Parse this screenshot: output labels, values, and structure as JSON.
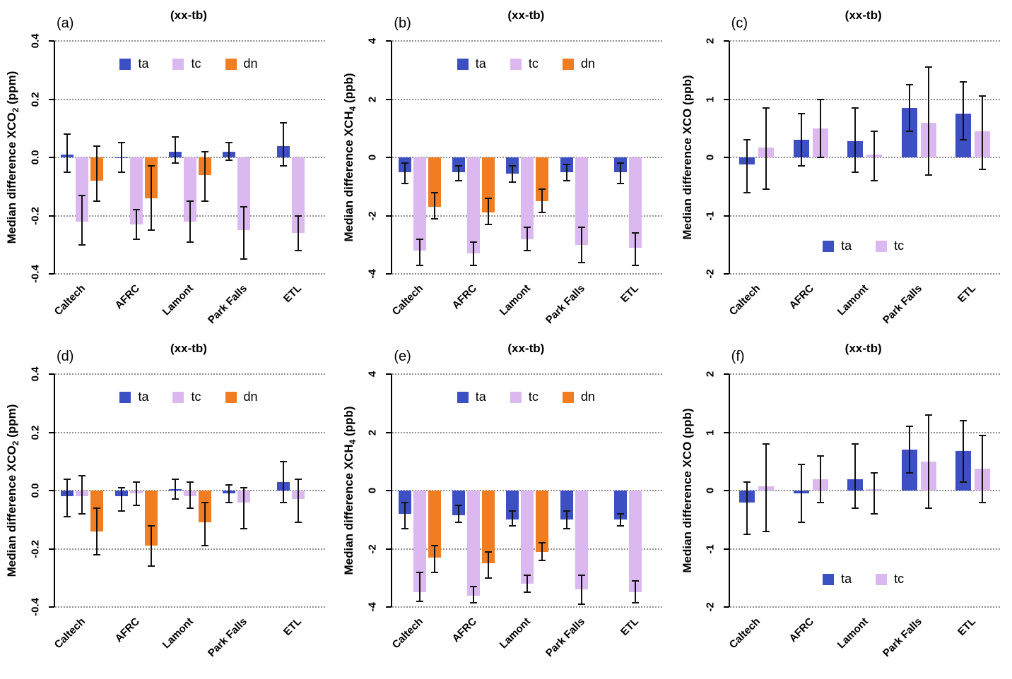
{
  "colors": {
    "ta": "#3d50c3",
    "tc": "#dcb8f0",
    "dn": "#f07d22",
    "grid": "#8f8f8f",
    "axis": "#000000",
    "error": "#121212"
  },
  "chart_data": [
    {
      "id": "a",
      "type": "bar",
      "letter": "(a)",
      "title": "(xx-tb)",
      "ylabel": {
        "prefix": "Median difference XCO",
        "sub": "2",
        "suffix": " (ppm)"
      },
      "ylim": [
        -0.4,
        0.4
      ],
      "yticks": [
        -0.4,
        -0.2,
        0.0,
        0.2,
        0.4
      ],
      "ytick_labels": [
        "-0.4",
        "-0.2",
        "0.0",
        "0.2",
        "0.4"
      ],
      "categories": [
        "Caltech",
        "AFRC",
        "Lamont",
        "Park Falls",
        "ETL"
      ],
      "grid": true,
      "legend_position": "top",
      "series": [
        {
          "name": "ta",
          "color_key": "ta",
          "values": [
            0.01,
            0.0,
            0.02,
            0.02,
            0.04
          ],
          "err_lo": [
            -0.05,
            -0.05,
            -0.02,
            -0.01,
            -0.03
          ],
          "err_hi": [
            0.08,
            0.05,
            0.07,
            0.05,
            0.12
          ]
        },
        {
          "name": "tc",
          "color_key": "tc",
          "values": [
            -0.22,
            -0.23,
            -0.22,
            -0.25,
            -0.26
          ],
          "err_lo": [
            -0.3,
            -0.28,
            -0.29,
            -0.35,
            -0.32
          ],
          "err_hi": [
            -0.13,
            -0.18,
            -0.15,
            -0.17,
            -0.2
          ]
        },
        {
          "name": "dn",
          "color_key": "dn",
          "values": [
            -0.08,
            -0.14,
            -0.06,
            null,
            null
          ],
          "err_lo": [
            -0.15,
            -0.25,
            -0.15,
            null,
            null
          ],
          "err_hi": [
            0.04,
            -0.03,
            0.02,
            null,
            null
          ]
        }
      ]
    },
    {
      "id": "b",
      "type": "bar",
      "letter": "(b)",
      "title": "(xx-tb)",
      "ylabel": {
        "prefix": "Median difference XCH",
        "sub": "4",
        "suffix": " (ppb)"
      },
      "ylim": [
        -4,
        4
      ],
      "yticks": [
        -4,
        -2,
        0,
        2,
        4
      ],
      "ytick_labels": [
        "-4",
        "-2",
        "0",
        "2",
        "4"
      ],
      "categories": [
        "Caltech",
        "AFRC",
        "Lamont",
        "Park Falls",
        "ETL"
      ],
      "grid": true,
      "legend_position": "top",
      "series": [
        {
          "name": "ta",
          "color_key": "ta",
          "values": [
            -0.5,
            -0.5,
            -0.55,
            -0.5,
            -0.5
          ],
          "err_lo": [
            -0.9,
            -0.8,
            -0.85,
            -0.8,
            -0.9
          ],
          "err_hi": [
            -0.2,
            -0.3,
            -0.3,
            -0.25,
            -0.2
          ]
        },
        {
          "name": "tc",
          "color_key": "tc",
          "values": [
            -3.2,
            -3.3,
            -2.8,
            -3.0,
            -3.1
          ],
          "err_lo": [
            -3.7,
            -3.7,
            -3.2,
            -3.6,
            -3.7
          ],
          "err_hi": [
            -2.8,
            -2.9,
            -2.4,
            -2.4,
            -2.6
          ]
        },
        {
          "name": "dn",
          "color_key": "dn",
          "values": [
            -1.7,
            -1.9,
            -1.5,
            null,
            null
          ],
          "err_lo": [
            -2.1,
            -2.3,
            -1.9,
            null,
            null
          ],
          "err_hi": [
            -1.2,
            -1.4,
            -1.1,
            null,
            null
          ]
        }
      ]
    },
    {
      "id": "c",
      "type": "bar",
      "letter": "(c)",
      "title": "(xx-tb)",
      "ylabel": {
        "prefix": "Median difference XCO",
        "sub": "",
        "suffix": " (ppb)"
      },
      "ylim": [
        -2,
        2
      ],
      "yticks": [
        -2,
        -1,
        0,
        1,
        2
      ],
      "ytick_labels": [
        "-2",
        "-1",
        "0",
        "1",
        "2"
      ],
      "categories": [
        "Caltech",
        "AFRC",
        "Lamont",
        "Park Falls",
        "ETL"
      ],
      "grid": true,
      "legend_position": "bottom",
      "series": [
        {
          "name": "ta",
          "color_key": "ta",
          "values": [
            -0.12,
            0.3,
            0.28,
            0.85,
            0.75
          ],
          "err_lo": [
            -0.6,
            -0.15,
            -0.25,
            0.45,
            0.3
          ],
          "err_hi": [
            0.3,
            0.75,
            0.85,
            1.25,
            1.3
          ]
        },
        {
          "name": "tc",
          "color_key": "tc",
          "values": [
            0.17,
            0.5,
            0.05,
            0.6,
            0.45
          ],
          "err_lo": [
            -0.55,
            0.0,
            -0.4,
            -0.3,
            -0.2
          ],
          "err_hi": [
            0.85,
            1.0,
            0.45,
            1.55,
            1.05
          ]
        }
      ]
    },
    {
      "id": "d",
      "type": "bar",
      "letter": "(d)",
      "title": "(xx-tb)",
      "ylabel": {
        "prefix": "Median difference XCO",
        "sub": "2",
        "suffix": " (ppm)"
      },
      "ylim": [
        -0.4,
        0.4
      ],
      "yticks": [
        -0.4,
        -0.2,
        0.0,
        0.2,
        0.4
      ],
      "ytick_labels": [
        "-0.4",
        "-0.2",
        "0.0",
        "0.2",
        "0.4"
      ],
      "categories": [
        "Caltech",
        "AFRC",
        "Lamont",
        "Park Falls",
        "ETL"
      ],
      "grid": true,
      "legend_position": "top",
      "series": [
        {
          "name": "ta",
          "color_key": "ta",
          "values": [
            -0.02,
            -0.02,
            0.005,
            -0.01,
            0.03
          ],
          "err_lo": [
            -0.09,
            -0.07,
            -0.03,
            -0.04,
            -0.04
          ],
          "err_hi": [
            0.04,
            0.01,
            0.04,
            0.02,
            0.1
          ]
        },
        {
          "name": "tc",
          "color_key": "tc",
          "values": [
            -0.02,
            -0.01,
            -0.02,
            -0.04,
            -0.03
          ],
          "err_lo": [
            -0.08,
            -0.05,
            -0.06,
            -0.13,
            -0.11
          ],
          "err_hi": [
            0.05,
            0.03,
            0.03,
            0.01,
            0.04
          ]
        },
        {
          "name": "dn",
          "color_key": "dn",
          "values": [
            -0.14,
            -0.19,
            -0.11,
            null,
            null
          ],
          "err_lo": [
            -0.22,
            -0.26,
            -0.19,
            null,
            null
          ],
          "err_hi": [
            -0.06,
            -0.12,
            -0.04,
            null,
            null
          ]
        }
      ]
    },
    {
      "id": "e",
      "type": "bar",
      "letter": "(e)",
      "title": "(xx-tb)",
      "ylabel": {
        "prefix": "Median difference XCH",
        "sub": "4",
        "suffix": " (ppb)"
      },
      "ylim": [
        -4,
        4
      ],
      "yticks": [
        -4,
        -2,
        0,
        2,
        4
      ],
      "ytick_labels": [
        "-4",
        "-2",
        "0",
        "2",
        "4"
      ],
      "categories": [
        "Caltech",
        "AFRC",
        "Lamont",
        "Park Falls",
        "ETL"
      ],
      "grid": true,
      "legend_position": "top",
      "series": [
        {
          "name": "ta",
          "color_key": "ta",
          "values": [
            -0.8,
            -0.85,
            -1.0,
            -1.0,
            -1.0
          ],
          "err_lo": [
            -1.3,
            -1.1,
            -1.2,
            -1.3,
            -1.2
          ],
          "err_hi": [
            -0.4,
            -0.5,
            -0.7,
            -0.7,
            -0.8
          ]
        },
        {
          "name": "tc",
          "color_key": "tc",
          "values": [
            -3.5,
            -3.6,
            -3.2,
            -3.4,
            -3.5
          ],
          "err_lo": [
            -3.8,
            -3.85,
            -3.5,
            -3.9,
            -3.85
          ],
          "err_hi": [
            -2.8,
            -3.3,
            -2.9,
            -2.9,
            -3.1
          ]
        },
        {
          "name": "dn",
          "color_key": "dn",
          "values": [
            -2.3,
            -2.5,
            -2.1,
            null,
            null
          ],
          "err_lo": [
            -2.8,
            -3.0,
            -2.4,
            null,
            null
          ],
          "err_hi": [
            -1.9,
            -2.1,
            -1.8,
            null,
            null
          ]
        }
      ]
    },
    {
      "id": "f",
      "type": "bar",
      "letter": "(f)",
      "title": "(xx-tb)",
      "ylabel": {
        "prefix": "Median difference XCO",
        "sub": "",
        "suffix": " (ppb)"
      },
      "ylim": [
        -2,
        2
      ],
      "yticks": [
        -2,
        -1,
        0,
        1,
        2
      ],
      "ytick_labels": [
        "-2",
        "-1",
        "0",
        "1",
        "2"
      ],
      "categories": [
        "Caltech",
        "AFRC",
        "Lamont",
        "Park Falls",
        "ETL"
      ],
      "grid": true,
      "legend_position": "bottom",
      "series": [
        {
          "name": "ta",
          "color_key": "ta",
          "values": [
            -0.2,
            -0.05,
            0.2,
            0.7,
            0.68
          ],
          "err_lo": [
            -0.75,
            -0.55,
            -0.3,
            0.3,
            0.15
          ],
          "err_hi": [
            0.15,
            0.45,
            0.8,
            1.1,
            1.2
          ]
        },
        {
          "name": "tc",
          "color_key": "tc",
          "values": [
            0.07,
            0.2,
            0.03,
            0.5,
            0.38
          ],
          "err_lo": [
            -0.7,
            -0.2,
            -0.4,
            -0.3,
            -0.2
          ],
          "err_hi": [
            0.8,
            0.6,
            0.3,
            1.3,
            0.95
          ]
        }
      ]
    }
  ]
}
